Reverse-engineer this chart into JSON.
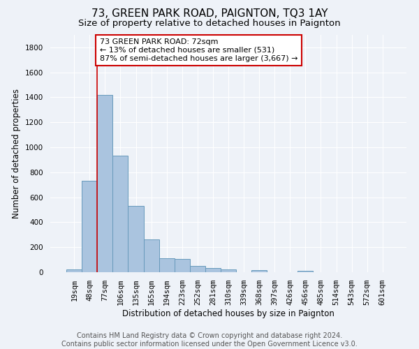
{
  "title": "73, GREEN PARK ROAD, PAIGNTON, TQ3 1AY",
  "subtitle": "Size of property relative to detached houses in Paignton",
  "xlabel": "Distribution of detached houses by size in Paignton",
  "ylabel": "Number of detached properties",
  "footer_line1": "Contains HM Land Registry data © Crown copyright and database right 2024.",
  "footer_line2": "Contains public sector information licensed under the Open Government Licence v3.0.",
  "bar_labels": [
    "19sqm",
    "48sqm",
    "77sqm",
    "106sqm",
    "135sqm",
    "165sqm",
    "194sqm",
    "223sqm",
    "252sqm",
    "281sqm",
    "310sqm",
    "339sqm",
    "368sqm",
    "397sqm",
    "426sqm",
    "456sqm",
    "485sqm",
    "514sqm",
    "543sqm",
    "572sqm",
    "601sqm"
  ],
  "bar_values": [
    20,
    730,
    1420,
    935,
    530,
    265,
    110,
    105,
    48,
    35,
    22,
    0,
    15,
    0,
    0,
    12,
    0,
    0,
    0,
    0,
    0
  ],
  "bar_color": "#aac4df",
  "bar_edge_color": "#6699bb",
  "property_line_bar_idx": 2,
  "annotation_text_line1": "73 GREEN PARK ROAD: 72sqm",
  "annotation_text_line2": "← 13% of detached houses are smaller (531)",
  "annotation_text_line3": "87% of semi-detached houses are larger (3,667) →",
  "annotation_box_color": "#ffffff",
  "annotation_box_edge_color": "#cc0000",
  "line_color": "#cc0000",
  "ylim": [
    0,
    1900
  ],
  "yticks": [
    0,
    200,
    400,
    600,
    800,
    1000,
    1200,
    1400,
    1600,
    1800
  ],
  "background_color": "#eef2f8",
  "grid_color": "#ffffff",
  "title_fontsize": 11,
  "subtitle_fontsize": 9.5,
  "label_fontsize": 8.5,
  "tick_fontsize": 7.5,
  "footer_fontsize": 7
}
